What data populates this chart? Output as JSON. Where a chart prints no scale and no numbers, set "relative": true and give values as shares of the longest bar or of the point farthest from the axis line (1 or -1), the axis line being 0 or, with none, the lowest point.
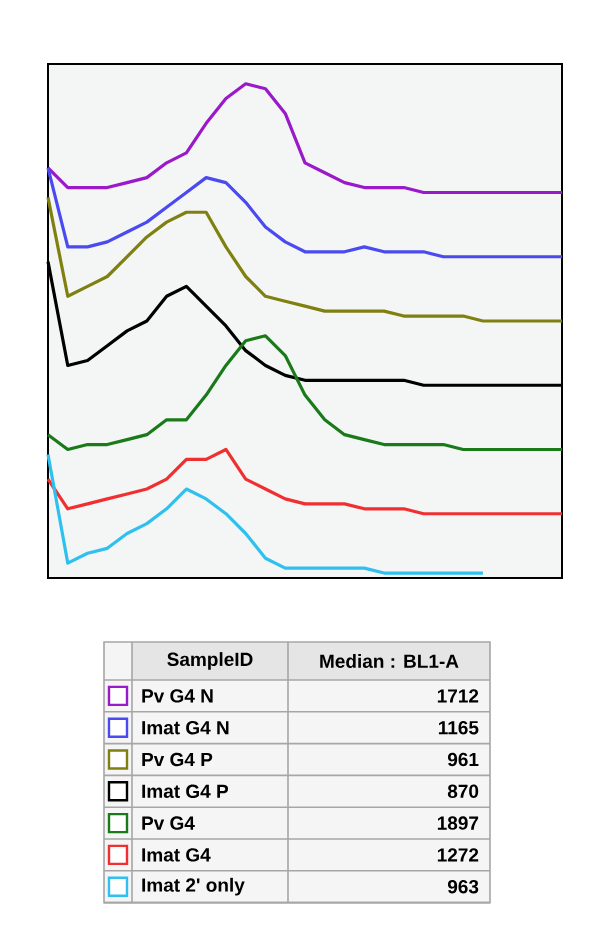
{
  "chart_data": {
    "type": "line",
    "relative": true,
    "legend": "bottom",
    "legend_title": "SampleID",
    "annotations": [
      "Median : BL1-A",
      "1712",
      "1165",
      "961",
      "870",
      "1897",
      "1272",
      "963"
    ],
    "categories": [
      null,
      null,
      null,
      null,
      null,
      null,
      null,
      null,
      null,
      null,
      null,
      null,
      null,
      null,
      null,
      null,
      null,
      null,
      null,
      null,
      null,
      null,
      null,
      null,
      null,
      null,
      null
    ],
    "series": [
      {
        "name": "Pv G4 N",
        "color": "#9a19c8",
        "values": [
          0.83,
          0.79,
          0.79,
          0.79,
          0.8,
          0.81,
          0.84,
          0.86,
          0.92,
          0.97,
          1.0,
          0.99,
          0.94,
          0.84,
          0.82,
          0.8,
          0.79,
          0.79,
          0.79,
          0.78,
          0.78,
          0.78,
          0.78,
          0.78,
          0.78,
          0.78,
          0.78
        ]
      },
      {
        "name": "Imat G4 N",
        "color": "#4a4af0",
        "values": [
          0.83,
          0.67,
          0.67,
          0.68,
          0.7,
          0.72,
          0.75,
          0.78,
          0.81,
          0.8,
          0.76,
          0.71,
          0.68,
          0.66,
          0.66,
          0.66,
          0.67,
          0.66,
          0.66,
          0.66,
          0.65,
          0.65,
          0.65,
          0.65,
          0.65,
          0.65,
          0.65
        ]
      },
      {
        "name": "Pv G4 P",
        "color": "#808010",
        "values": [
          0.77,
          0.57,
          0.59,
          0.61,
          0.65,
          0.69,
          0.72,
          0.74,
          0.74,
          0.67,
          0.61,
          0.57,
          0.56,
          0.55,
          0.54,
          0.54,
          0.54,
          0.54,
          0.53,
          0.53,
          0.53,
          0.53,
          0.52,
          0.52,
          0.52,
          0.52,
          0.52
        ]
      },
      {
        "name": "Imat G4 P",
        "color": "#000000",
        "values": [
          0.64,
          0.43,
          0.44,
          0.47,
          0.5,
          0.52,
          0.57,
          0.59,
          0.55,
          0.51,
          0.46,
          0.43,
          0.41,
          0.4,
          0.4,
          0.4,
          0.4,
          0.4,
          0.4,
          0.39,
          0.39,
          0.39,
          0.39,
          0.39,
          0.39,
          0.39,
          0.39
        ]
      },
      {
        "name": "Pv G4",
        "color": "#1a7a1a",
        "values": [
          0.29,
          0.26,
          0.27,
          0.27,
          0.28,
          0.29,
          0.32,
          0.32,
          0.37,
          0.43,
          0.48,
          0.49,
          0.45,
          0.37,
          0.32,
          0.29,
          0.28,
          0.27,
          0.27,
          0.27,
          0.27,
          0.26,
          0.26,
          0.26,
          0.26,
          0.26,
          0.26
        ]
      },
      {
        "name": "Imat G4",
        "color": "#f03030",
        "values": [
          0.2,
          0.14,
          0.15,
          0.16,
          0.17,
          0.18,
          0.2,
          0.24,
          0.24,
          0.26,
          0.2,
          0.18,
          0.16,
          0.15,
          0.15,
          0.15,
          0.14,
          0.14,
          0.14,
          0.13,
          0.13,
          0.13,
          0.13,
          0.13,
          0.13,
          0.13,
          0.13
        ]
      },
      {
        "name": "Imat 2' only",
        "color": "#30c0f0",
        "values": [
          0.25,
          0.03,
          0.05,
          0.06,
          0.09,
          0.11,
          0.14,
          0.18,
          0.16,
          0.13,
          0.09,
          0.04,
          0.02,
          0.02,
          0.02,
          0.02,
          0.02,
          0.01,
          0.01,
          0.01,
          0.01,
          0.01,
          0.01,
          null,
          null,
          null,
          null
        ]
      }
    ]
  }
}
